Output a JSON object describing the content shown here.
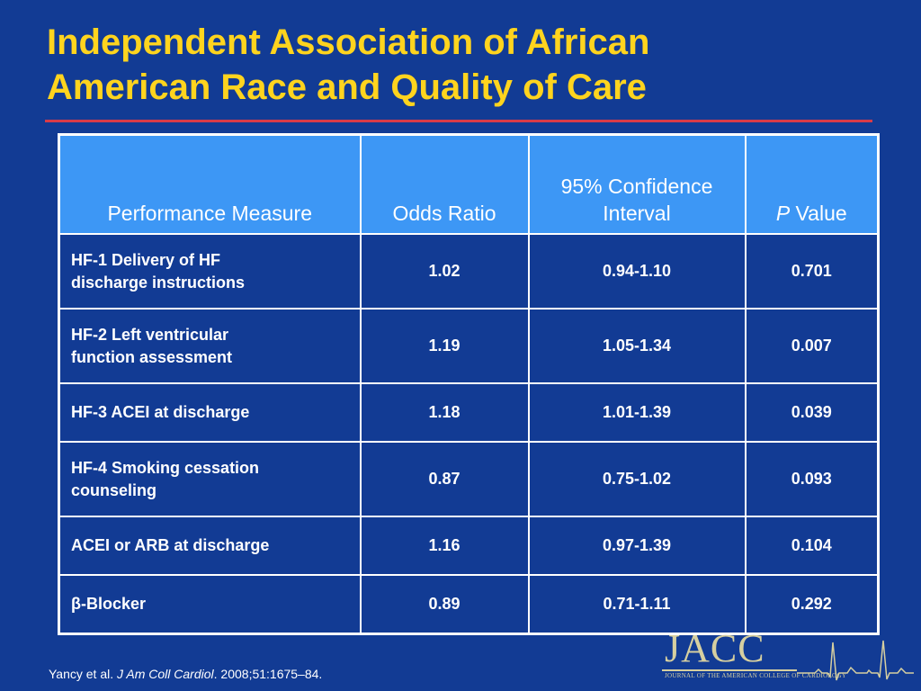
{
  "slide": {
    "title_line1": "Independent Association of African",
    "title_line2": "American Race and Quality of Care"
  },
  "table": {
    "headers": {
      "measure": "Performance Measure",
      "odds_ratio": "Odds Ratio",
      "ci_line1": "95% Confidence",
      "ci_line2": "Interval",
      "p_italic": "P",
      "p_rest": " Value"
    },
    "rows": [
      {
        "measure_line1": "HF-1 Delivery of HF",
        "measure_line2": "discharge instructions",
        "odds_ratio": "1.02",
        "ci": "0.94-1.10",
        "p": "0.701"
      },
      {
        "measure_line1": "HF-2 Left ventricular",
        "measure_line2": "function assessment",
        "odds_ratio": "1.19",
        "ci": "1.05-1.34",
        "p": "0.007"
      },
      {
        "measure_line1": "HF-3 ACEI at discharge",
        "measure_line2": "",
        "odds_ratio": "1.18",
        "ci": "1.01-1.39",
        "p": "0.039"
      },
      {
        "measure_line1": "HF-4 Smoking cessation",
        "measure_line2": "counseling",
        "odds_ratio": "0.87",
        "ci": "0.75-1.02",
        "p": "0.093"
      },
      {
        "measure_line1": "ACEI or ARB at discharge",
        "measure_line2": "",
        "odds_ratio": "1.16",
        "ci": "0.97-1.39",
        "p": "0.104"
      },
      {
        "measure_line1": "β-Blocker",
        "measure_line2": "",
        "odds_ratio": "0.89",
        "ci": "0.71-1.11",
        "p": "0.292"
      }
    ]
  },
  "citation": {
    "authors": "Yancy et al. ",
    "journal": "J Am Coll Cardiol",
    "rest": ". 2008;51:1675–84."
  },
  "logo": {
    "wordmark": "JACC",
    "subtitle": "JOURNAL OF THE AMERICAN COLLEGE OF CARDIOLOGY"
  },
  "colors": {
    "background": "#123b94",
    "title": "#ffd41e",
    "rule": "#d83b48",
    "header_fill": "#3d97f5",
    "text": "#ffffff"
  }
}
